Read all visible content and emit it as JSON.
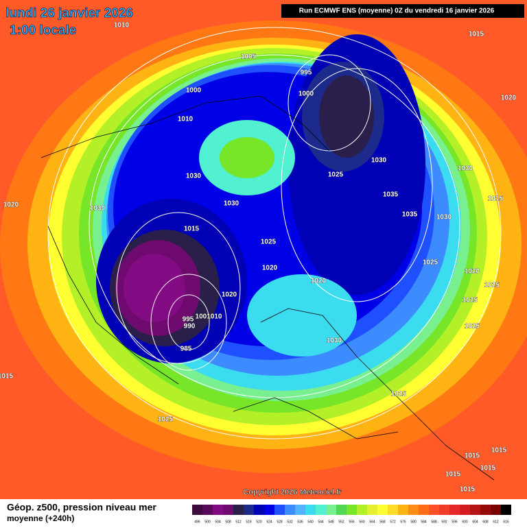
{
  "header": {
    "date": "lundi 26 janvier 2026",
    "time": "1:00 locale"
  },
  "run_info": "Run ECMWF ENS (moyenne) 0Z du vendredi 16 janvier 2026",
  "isobar_labels": [
    "1010",
    "1015",
    "1005",
    "995",
    "1000",
    "1000",
    "1020",
    "1010",
    "1030",
    "1030",
    "1030",
    "1025",
    "1035",
    "1015",
    "1020",
    "1030",
    "1030",
    "1035",
    "1030",
    "1015",
    "1025",
    "1025",
    "1020",
    "1020",
    "1020",
    "1025",
    "1020",
    "1025",
    "995",
    "990",
    "1001010",
    "1025",
    "1030",
    "985",
    "1015",
    "1025",
    "1025",
    "1015",
    "1015",
    "1015",
    "1015",
    "1015"
  ],
  "copyright": "Copyright 2026 Meteociel.fr",
  "legend": {
    "title": "Géop. z500, pression niveau mer",
    "subtitle": "moyenne  (+240h)",
    "scale": [
      {
        "value": 496,
        "color": "#3c0a3c"
      },
      {
        "value": 500,
        "color": "#5a0a5a"
      },
      {
        "value": 504,
        "color": "#820a82"
      },
      {
        "value": 508,
        "color": "#6e0a6e"
      },
      {
        "value": 512,
        "color": "#2a1e4a"
      },
      {
        "value": 516,
        "color": "#1c2a8c"
      },
      {
        "value": 520,
        "color": "#0000b4"
      },
      {
        "value": 524,
        "color": "#0000e6"
      },
      {
        "value": 528,
        "color": "#1e50ff"
      },
      {
        "value": 532,
        "color": "#3c8cff"
      },
      {
        "value": 536,
        "color": "#50b4ff"
      },
      {
        "value": 540,
        "color": "#3cdcf0"
      },
      {
        "value": 544,
        "color": "#50f0d0"
      },
      {
        "value": 548,
        "color": "#78f090"
      },
      {
        "value": 552,
        "color": "#50d850"
      },
      {
        "value": 556,
        "color": "#78e628"
      },
      {
        "value": 560,
        "color": "#b4f028"
      },
      {
        "value": 564,
        "color": "#e6f032"
      },
      {
        "value": 568,
        "color": "#ffff32"
      },
      {
        "value": 572,
        "color": "#ffdc28"
      },
      {
        "value": 576,
        "color": "#ffb414"
      },
      {
        "value": 580,
        "color": "#ff8c14"
      },
      {
        "value": 584,
        "color": "#ff6e14"
      },
      {
        "value": 588,
        "color": "#ff5028"
      },
      {
        "value": 592,
        "color": "#f03c28"
      },
      {
        "value": 596,
        "color": "#e62828"
      },
      {
        "value": 600,
        "color": "#d21e1e"
      },
      {
        "value": 604,
        "color": "#b41414"
      },
      {
        "value": 608,
        "color": "#960a0a"
      },
      {
        "value": 612,
        "color": "#780000"
      },
      {
        "value": 616,
        "color": "#000000"
      }
    ]
  }
}
